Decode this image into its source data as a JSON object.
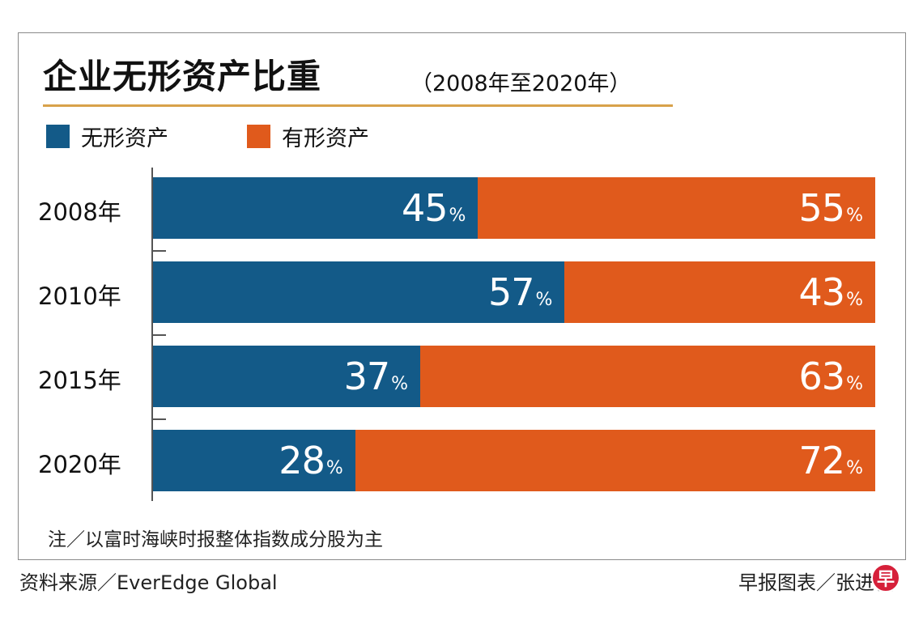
{
  "chart_data": {
    "type": "bar",
    "stacked": true,
    "orientation": "horizontal",
    "title": "企业无形资产比重",
    "subtitle": "（2008年至2020年）",
    "categories": [
      "2008年",
      "2010年",
      "2015年",
      "2020年"
    ],
    "series": [
      {
        "name": "无形资产",
        "color": "#135a88",
        "values": [
          45,
          57,
          37,
          28
        ]
      },
      {
        "name": "有形资产",
        "color": "#e05a1c",
        "values": [
          55,
          43,
          63,
          72
        ]
      }
    ],
    "unit": "%",
    "xlim": [
      0,
      100
    ],
    "legend_position": "top-left"
  },
  "note": "注／以富时海峡时报整体指数成分股为主",
  "source": "资料来源／EverEdge Global",
  "credit": "早报图表／张进福",
  "logo_text": "早"
}
